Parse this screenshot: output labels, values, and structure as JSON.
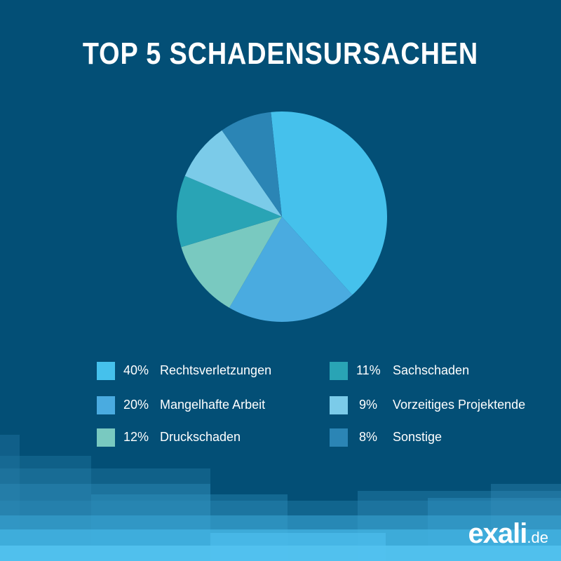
{
  "chart_data": {
    "type": "pie",
    "title": "TOP 5 SCHADENSURSACHEN",
    "slices": [
      {
        "label": "Rechtsverletzungen",
        "percent_label": "40%",
        "value": 40,
        "color": "#45c1ec"
      },
      {
        "label": "Mangelhafte Arbeit",
        "percent_label": "20%",
        "value": 20,
        "color": "#4aabe0"
      },
      {
        "label": "Druckschaden",
        "percent_label": "12%",
        "value": 12,
        "color": "#79c9c0"
      },
      {
        "label": "Sachschaden",
        "percent_label": "11%",
        "value": 11,
        "color": "#29a4b5"
      },
      {
        "label": "Vorzeitiges Projektende",
        "percent_label": "9%",
        "value": 9,
        "color": "#7bcbe9"
      },
      {
        "label": "Sonstige",
        "percent_label": "8%",
        "value": 8,
        "color": "#2b85b5"
      }
    ],
    "legend_position": "bottom"
  },
  "branding": {
    "logo_main": "exali",
    "logo_tld": ".de"
  },
  "colors": {
    "background": "#034f76",
    "text": "#ffffff"
  }
}
